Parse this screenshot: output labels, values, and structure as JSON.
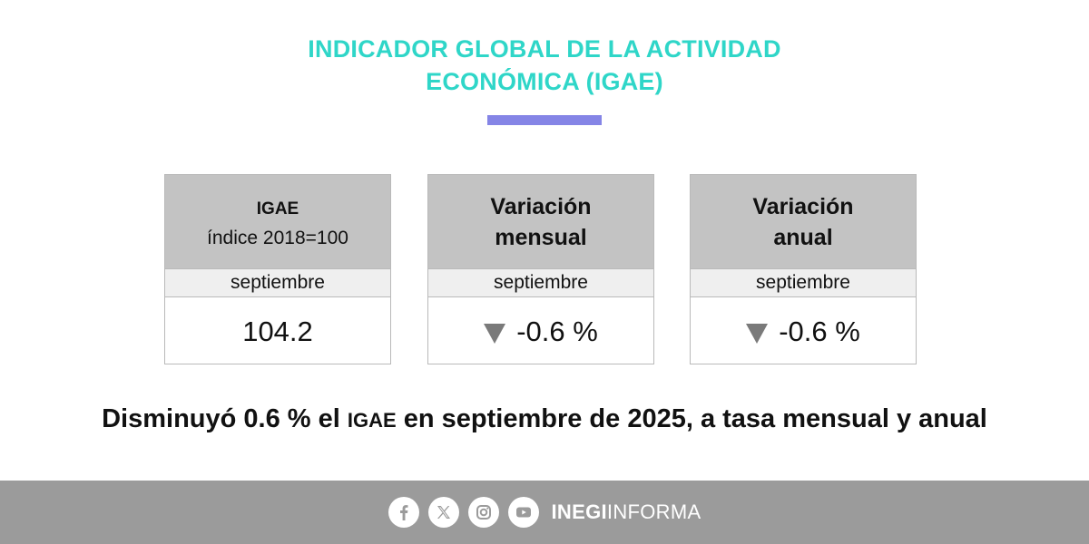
{
  "header": {
    "title_line1": "INDICADOR GLOBAL DE LA ACTIVIDAD",
    "title_line2": "ECONÓMICA (IGAE)"
  },
  "cards": [
    {
      "title": "IGAE",
      "subtitle": "índice 2018=100",
      "period": "septiembre",
      "value": "104.2"
    },
    {
      "title_line1": "Variación",
      "title_line2": "mensual",
      "period": "septiembre",
      "value": "-0.6 %"
    },
    {
      "title_line1": "Variación",
      "title_line2": "anual",
      "period": "septiembre",
      "value": "-0.6 %"
    }
  ],
  "headline": {
    "part1": "Disminuyó 0.6 % el ",
    "part2": "IGAE",
    "part3": " en septiembre de 2025, a tasa mensual y anual"
  },
  "footer": {
    "brand_bold": "INEGI",
    "brand_rest": "INFORMA",
    "icons": [
      "facebook-icon",
      "x-icon",
      "instagram-icon",
      "youtube-icon"
    ]
  },
  "colors": {
    "title": "#2fd6c8",
    "accent": "#8585e6",
    "card_header": "#c3c3c3",
    "footer": "#9b9b9b",
    "arrow": "#7a7a7a"
  }
}
